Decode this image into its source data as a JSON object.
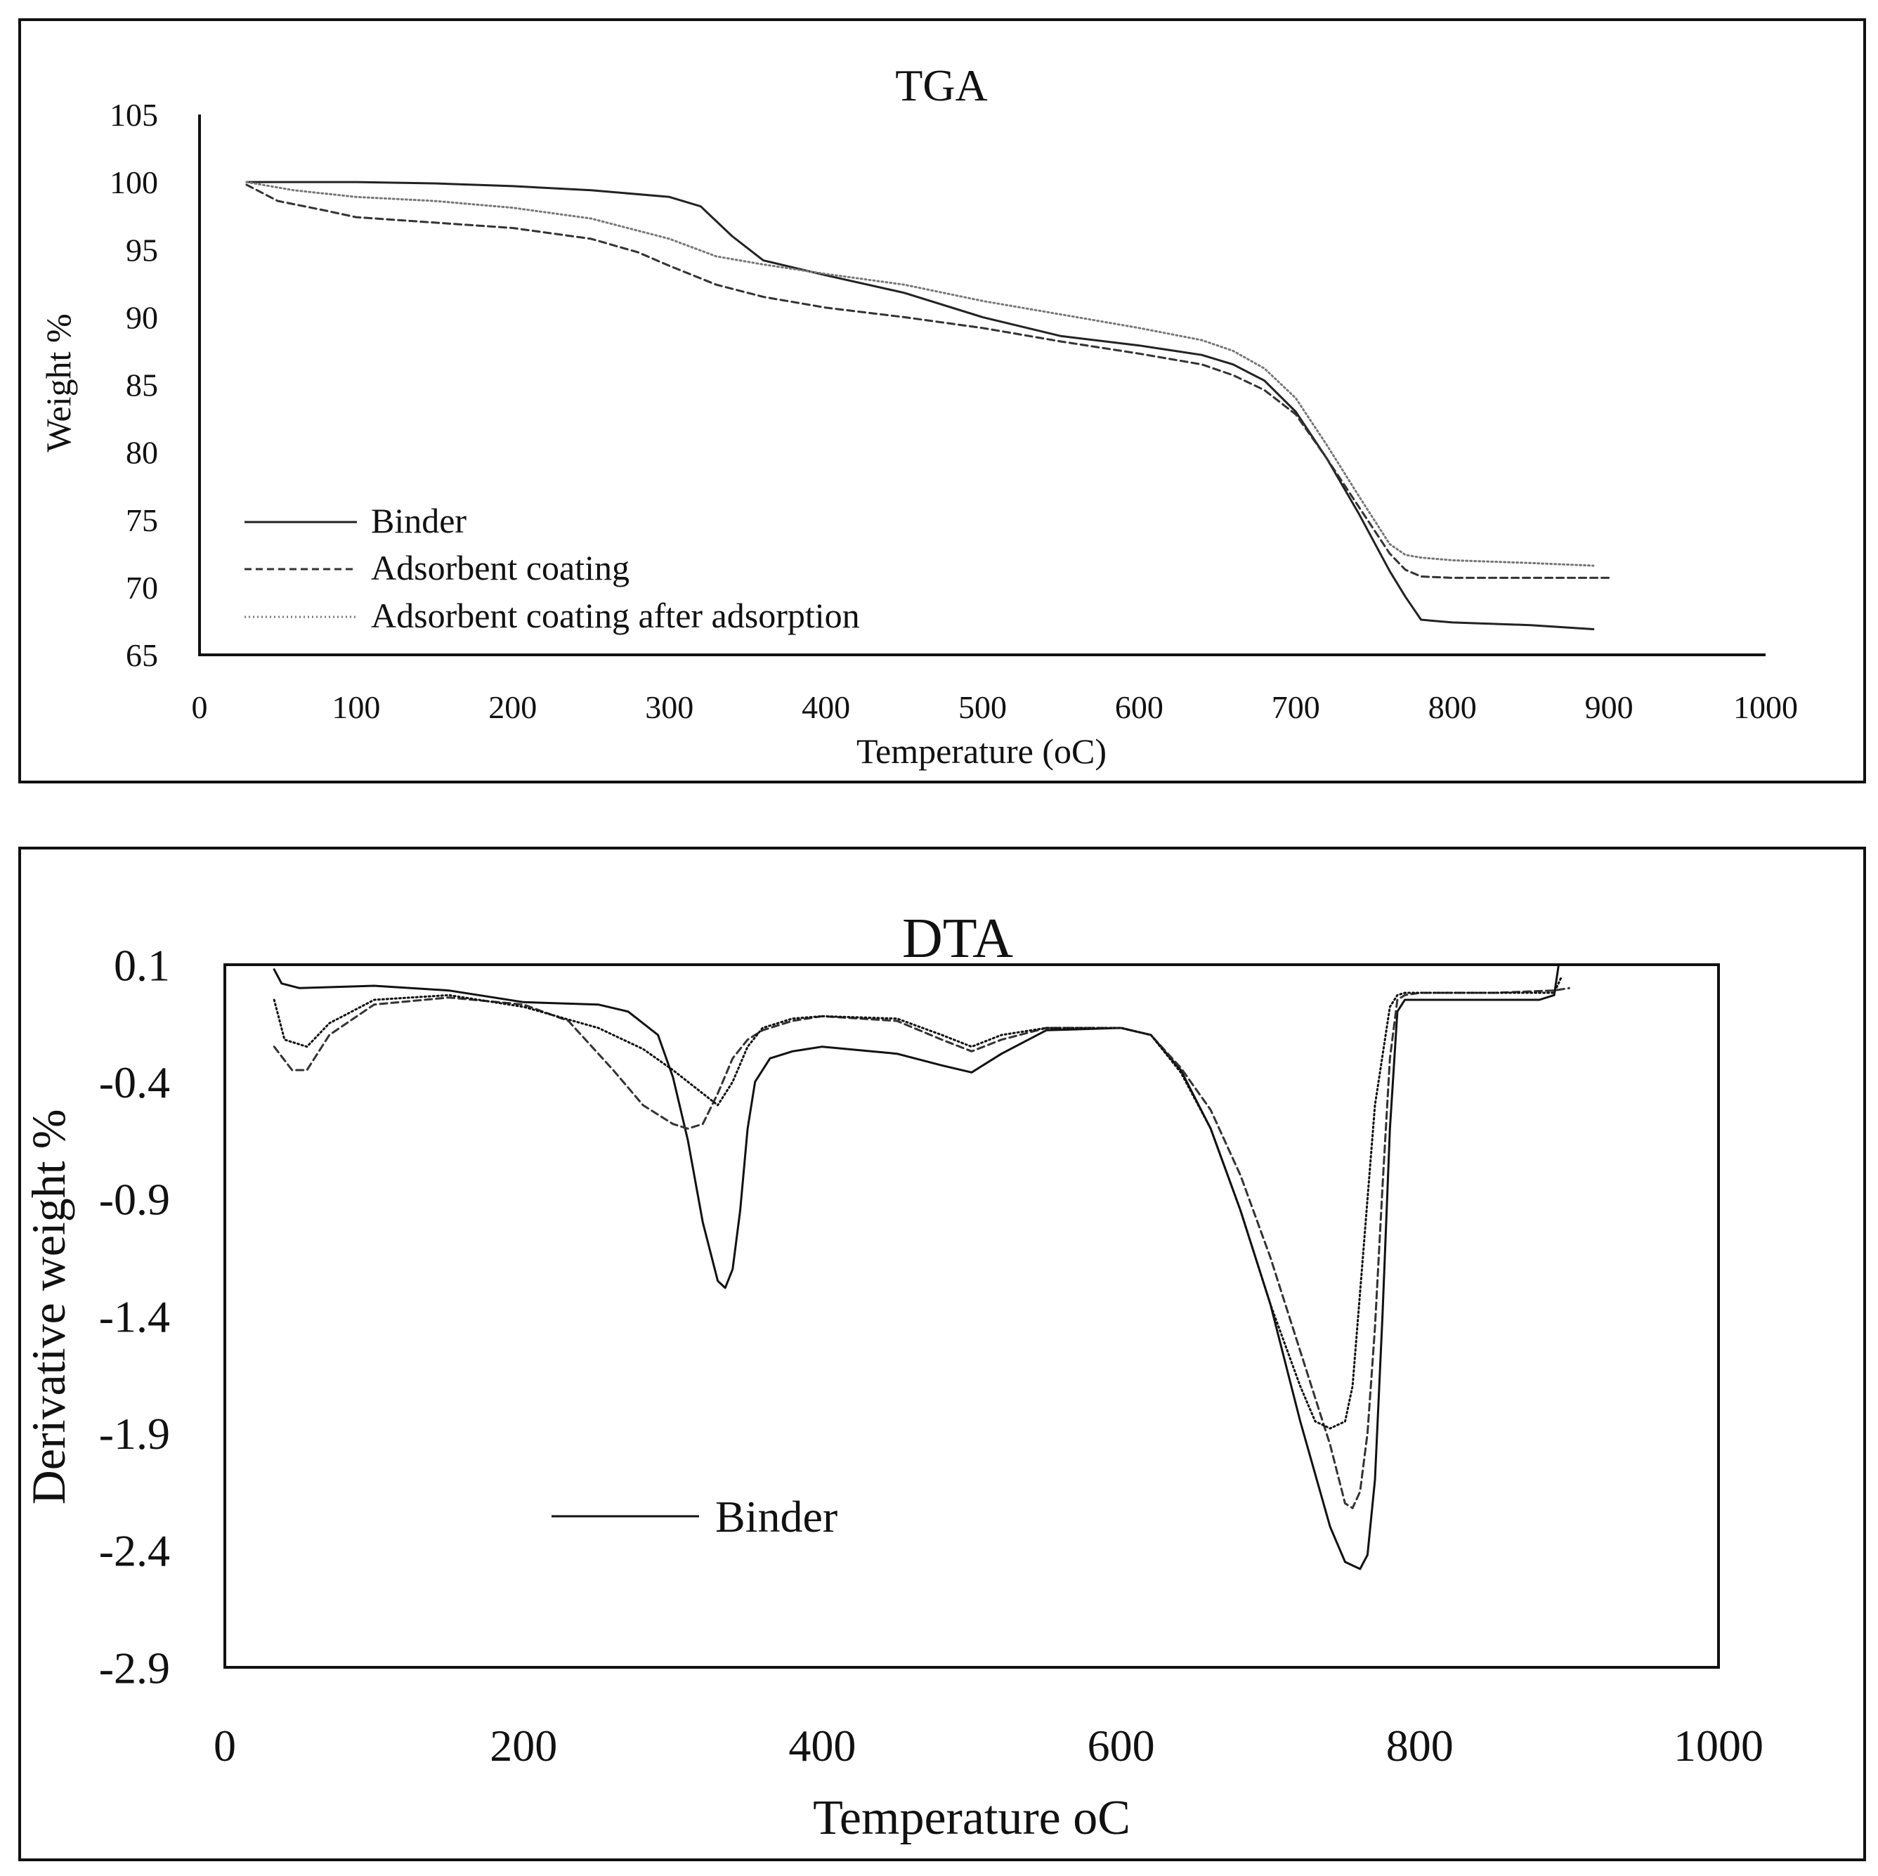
{
  "chart_data": [
    {
      "type": "line",
      "title": "TGA",
      "xlabel": "Temperature (oC)",
      "ylabel": "Weight %",
      "xlim": [
        0,
        1000
      ],
      "ylim": [
        65,
        105
      ],
      "x_ticks": [
        "0",
        "100",
        "200",
        "300",
        "400",
        "500",
        "600",
        "700",
        "800",
        "900",
        "1000"
      ],
      "y_ticks": [
        "105",
        "100",
        "95",
        "90",
        "85",
        "80",
        "75",
        "70",
        "65"
      ],
      "grid": false,
      "legend": "bottom-left",
      "series": [
        {
          "name": "Binder",
          "style": "solid",
          "color": "#222222",
          "x": [
            30,
            100,
            150,
            200,
            250,
            300,
            320,
            340,
            360,
            400,
            450,
            500,
            550,
            600,
            640,
            660,
            680,
            700,
            720,
            740,
            760,
            770,
            780,
            800,
            850,
            890
          ],
          "y": [
            100,
            100,
            99.9,
            99.7,
            99.4,
            98.9,
            98.2,
            96,
            94.2,
            93.1,
            91.8,
            90,
            88.6,
            87.9,
            87.2,
            86.5,
            85.3,
            83,
            79.5,
            75.5,
            71.2,
            69.3,
            67.6,
            67.4,
            67.2,
            66.9
          ]
        },
        {
          "name": "Adsorbent coating",
          "style": "dashed",
          "color": "#333333",
          "x": [
            30,
            50,
            80,
            100,
            150,
            200,
            250,
            280,
            300,
            330,
            360,
            400,
            450,
            500,
            550,
            600,
            640,
            660,
            680,
            700,
            720,
            740,
            760,
            770,
            780,
            800,
            850,
            900
          ],
          "y": [
            99.8,
            98.6,
            97.9,
            97.4,
            97,
            96.6,
            95.8,
            94.8,
            93.8,
            92.4,
            91.5,
            90.7,
            90,
            89.2,
            88.2,
            87.3,
            86.5,
            85.7,
            84.6,
            82.8,
            79.5,
            76,
            72.5,
            71.3,
            70.8,
            70.7,
            70.7,
            70.7
          ]
        },
        {
          "name": "Adsorbent coating after adsorption",
          "style": "dotted",
          "color": "#777777",
          "x": [
            30,
            60,
            100,
            150,
            200,
            250,
            300,
            330,
            360,
            400,
            450,
            500,
            550,
            600,
            640,
            660,
            680,
            700,
            720,
            740,
            760,
            770,
            780,
            800,
            850,
            890
          ],
          "y": [
            100,
            99.4,
            98.9,
            98.6,
            98.1,
            97.3,
            95.8,
            94.5,
            93.9,
            93.2,
            92.4,
            91.2,
            90.2,
            89.2,
            88.3,
            87.5,
            86.2,
            84,
            80.5,
            76.8,
            73.2,
            72.4,
            72.2,
            72,
            71.8,
            71.6
          ]
        }
      ]
    },
    {
      "type": "line",
      "title": "DTA",
      "xlabel": "Temperature oC",
      "ylabel": "Derivative weight %",
      "xlim": [
        0,
        1000
      ],
      "ylim": [
        -2.9,
        0.1
      ],
      "x_ticks": [
        "0",
        "200",
        "400",
        "600",
        "800",
        "1000"
      ],
      "y_ticks": [
        "0.1",
        "-0.4",
        "-0.9",
        "-1.4",
        "-1.9",
        "-2.4",
        "-2.9"
      ],
      "grid": false,
      "legend": "bottom-left",
      "series": [
        {
          "name": "Binder",
          "style": "solid",
          "color": "#111111",
          "x": [
            33,
            38,
            50,
            100,
            150,
            200,
            250,
            270,
            290,
            300,
            310,
            320,
            330,
            335,
            340,
            345,
            350,
            355,
            365,
            380,
            400,
            450,
            480,
            500,
            520,
            550,
            600,
            620,
            640,
            660,
            680,
            700,
            720,
            740,
            750,
            760,
            765,
            770,
            775,
            780,
            785,
            790,
            800,
            850,
            880,
            890,
            893
          ],
          "y": [
            0.08,
            0.02,
            0.0,
            0.01,
            -0.01,
            -0.06,
            -0.07,
            -0.1,
            -0.2,
            -0.38,
            -0.65,
            -1.0,
            -1.25,
            -1.28,
            -1.2,
            -0.95,
            -0.6,
            -0.4,
            -0.3,
            -0.27,
            -0.25,
            -0.28,
            -0.33,
            -0.36,
            -0.28,
            -0.18,
            -0.17,
            -0.2,
            -0.35,
            -0.6,
            -0.95,
            -1.35,
            -1.85,
            -2.3,
            -2.45,
            -2.48,
            -2.42,
            -2.1,
            -1.4,
            -0.6,
            -0.1,
            -0.05,
            -0.05,
            -0.05,
            -0.05,
            -0.03,
            0.1
          ]
        },
        {
          "name": "",
          "style": "dashed",
          "color": "#333333",
          "x": [
            33,
            45,
            55,
            70,
            100,
            150,
            200,
            230,
            260,
            280,
            300,
            310,
            320,
            330,
            340,
            350,
            360,
            380,
            400,
            450,
            480,
            500,
            520,
            550,
            600,
            620,
            640,
            660,
            680,
            700,
            720,
            740,
            750,
            755,
            760,
            765,
            770,
            775,
            780,
            785,
            790,
            800,
            850,
            890,
            900
          ],
          "y": [
            -0.25,
            -0.35,
            -0.35,
            -0.2,
            -0.07,
            -0.04,
            -0.07,
            -0.14,
            -0.35,
            -0.5,
            -0.58,
            -0.6,
            -0.58,
            -0.45,
            -0.3,
            -0.22,
            -0.18,
            -0.14,
            -0.12,
            -0.14,
            -0.22,
            -0.27,
            -0.22,
            -0.17,
            -0.17,
            -0.2,
            -0.34,
            -0.52,
            -0.8,
            -1.15,
            -1.55,
            -1.95,
            -2.2,
            -2.22,
            -2.15,
            -1.9,
            -1.45,
            -0.85,
            -0.3,
            -0.05,
            -0.03,
            -0.02,
            -0.02,
            -0.01,
            0.0
          ]
        },
        {
          "name": "",
          "style": "dotted",
          "color": "#111111",
          "x": [
            33,
            40,
            55,
            70,
            100,
            150,
            200,
            250,
            280,
            300,
            320,
            330,
            340,
            350,
            360,
            380,
            400,
            450,
            480,
            500,
            520,
            550,
            600,
            620,
            640,
            660,
            680,
            700,
            720,
            730,
            740,
            750,
            755,
            760,
            770,
            780,
            785,
            790,
            800,
            850,
            890,
            895
          ],
          "y": [
            -0.05,
            -0.22,
            -0.25,
            -0.15,
            -0.05,
            -0.03,
            -0.08,
            -0.17,
            -0.26,
            -0.35,
            -0.45,
            -0.5,
            -0.4,
            -0.25,
            -0.17,
            -0.13,
            -0.12,
            -0.13,
            -0.2,
            -0.25,
            -0.2,
            -0.17,
            -0.17,
            -0.2,
            -0.36,
            -0.6,
            -0.95,
            -1.35,
            -1.7,
            -1.85,
            -1.88,
            -1.85,
            -1.7,
            -1.3,
            -0.5,
            -0.08,
            -0.03,
            -0.02,
            -0.02,
            -0.02,
            -0.02,
            0.05
          ]
        }
      ]
    }
  ]
}
